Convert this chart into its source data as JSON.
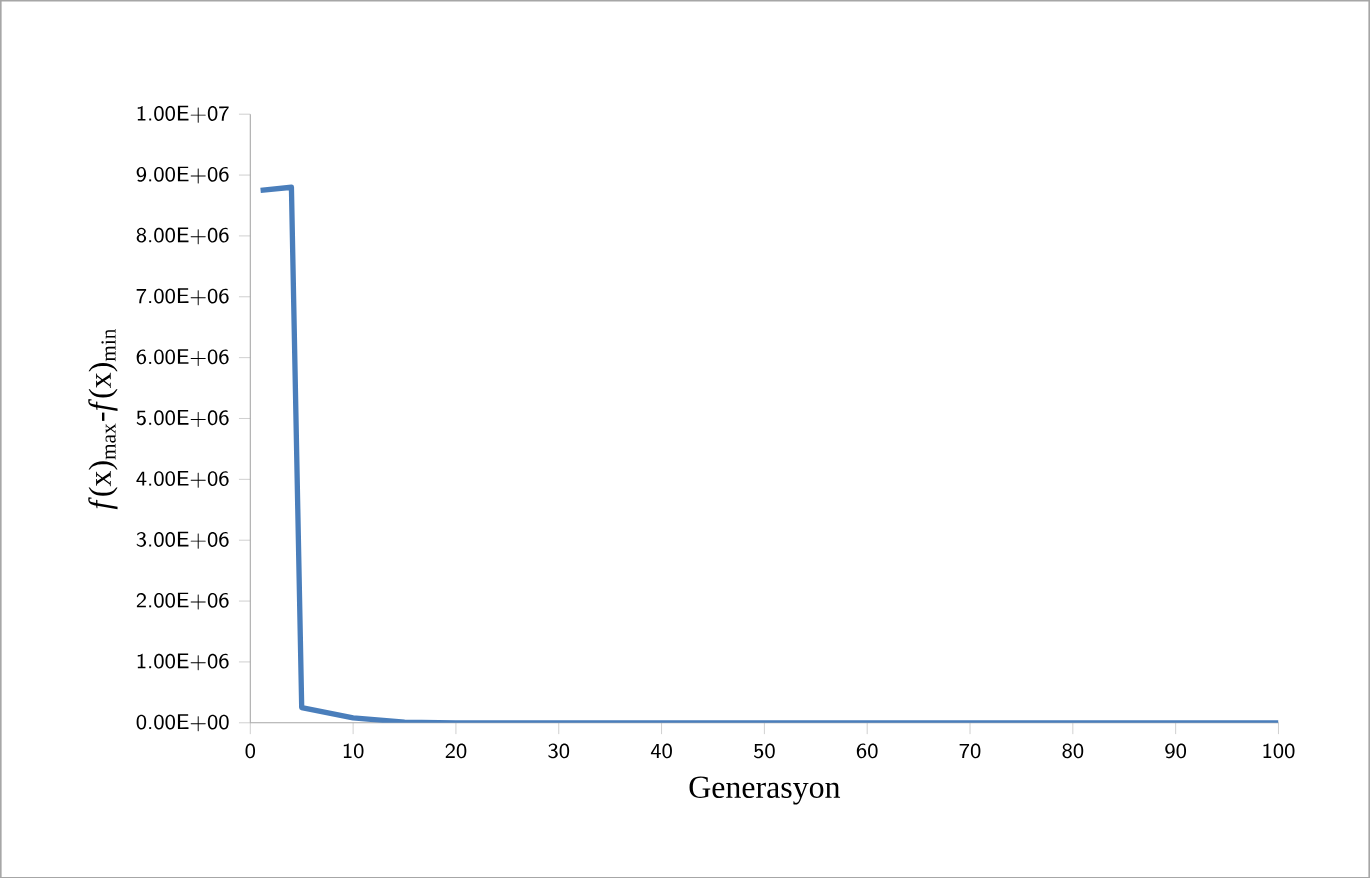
{
  "chart_data": {
    "type": "line",
    "xlabel": "Generasyon",
    "ylabel": "*f*(x)$_{max}$-*f*(x)$_{min}$",
    "x": [
      1,
      4,
      5,
      10,
      15,
      20,
      30,
      40,
      50,
      60,
      70,
      80,
      90,
      100
    ],
    "series": [
      {
        "color": "#4a7ebb",
        "values": [
          8750000,
          8800000,
          250000,
          80000,
          10000,
          0,
          0,
          0,
          0,
          0,
          0,
          0,
          0,
          0
        ]
      }
    ],
    "xlim": [
      0,
      100
    ],
    "xticks": [
      0,
      10,
      20,
      30,
      40,
      50,
      60,
      70,
      80,
      90,
      100
    ],
    "ylim": [
      0,
      10000000
    ],
    "yticks": [
      {
        "value": 0,
        "label": "0.00E+00"
      },
      {
        "value": 1000000,
        "label": "1.00E+06"
      },
      {
        "value": 2000000,
        "label": "2.00E+06"
      },
      {
        "value": 3000000,
        "label": "3.00E+06"
      },
      {
        "value": 4000000,
        "label": "4.00E+06"
      },
      {
        "value": 5000000,
        "label": "5.00E+06"
      },
      {
        "value": 6000000,
        "label": "6.00E+06"
      },
      {
        "value": 7000000,
        "label": "7.00E+06"
      },
      {
        "value": 8000000,
        "label": "8.00E+06"
      },
      {
        "value": 9000000,
        "label": "9.00E+06"
      },
      {
        "value": 10000000,
        "label": "1.00E+07"
      }
    ],
    "marker": "none",
    "line_style": "solid"
  }
}
